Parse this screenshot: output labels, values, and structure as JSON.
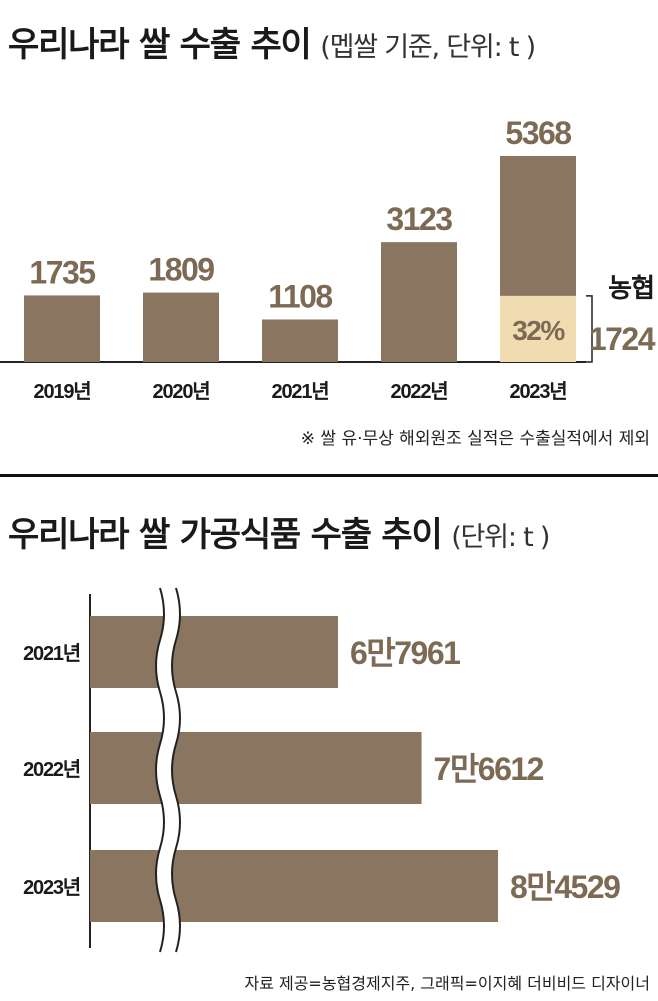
{
  "colors": {
    "bar": "#8a7660",
    "highlight": "#f1dcb1",
    "axis": "#222222",
    "label": "#7d6a55",
    "text": "#1a1a1a"
  },
  "chart1": {
    "title": "우리나라 쌀 수출 추이",
    "subtitle": "(멥쌀 기준, 단위: t )",
    "footnote": "※ 쌀 유·무상 해외원조 실적은 수출실적에서 제외",
    "callout_label": "농협",
    "callout_value": "1724",
    "highlight_label": "32%"
  },
  "chart2": {
    "title": "우리나라 쌀 가공식품 수출 추이",
    "subtitle": "(단위: t )"
  },
  "credit": "자료 제공=농협경제지주, 그래픽=이지혜 더비비드 디자이너",
  "chart_data": [
    {
      "type": "bar",
      "title": "우리나라 쌀 수출 추이",
      "subtitle": "(멥쌀 기준, 단위: t )",
      "categories": [
        "2019년",
        "2020년",
        "2021년",
        "2022년",
        "2023년"
      ],
      "values": [
        1735,
        1809,
        1108,
        3123,
        5368
      ],
      "value_labels": [
        "1735",
        "1809",
        "1108",
        "3123",
        "5368"
      ],
      "highlight": {
        "category": "2023년",
        "value": 1724,
        "label": "32%",
        "legend": "농협",
        "value_label": "1724"
      },
      "ylim": [
        0,
        5368
      ],
      "grid": false,
      "orientation": "vertical"
    },
    {
      "type": "bar",
      "title": "우리나라 쌀 가공식품 수출 추이",
      "subtitle": "(단위: t )",
      "orientation": "horizontal",
      "categories": [
        "2021년",
        "2022년",
        "2023년"
      ],
      "values": [
        67961,
        76612,
        84529
      ],
      "value_labels": [
        "6만7961",
        "7만6612",
        "8만4529"
      ],
      "axis_break": true,
      "grid": false
    }
  ]
}
